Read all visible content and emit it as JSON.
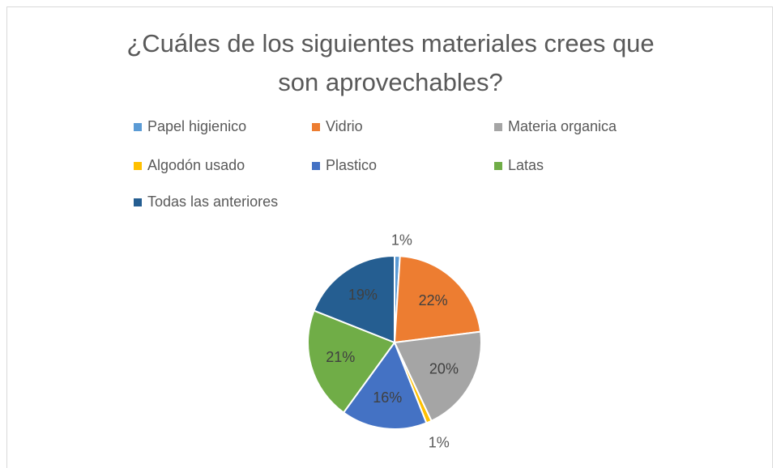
{
  "chart_data": {
    "type": "pie",
    "title": "¿Cuáles de los siguientes materiales crees que son aprovechables?",
    "categories": [
      "Papel higienico",
      "Vidrio",
      "Materia organica",
      "Algodón usado",
      "Plastico",
      "Latas",
      "Todas las anteriores"
    ],
    "values": [
      1,
      22,
      20,
      1,
      16,
      21,
      19
    ],
    "value_labels": [
      "1%",
      "22%",
      "20%",
      "1%",
      "16%",
      "21%",
      "19%"
    ],
    "colors": [
      "#5b9bd5",
      "#ed7d31",
      "#a5a5a5",
      "#ffc000",
      "#4472c4",
      "#70ad47",
      "#255e91"
    ],
    "legend": "top"
  }
}
